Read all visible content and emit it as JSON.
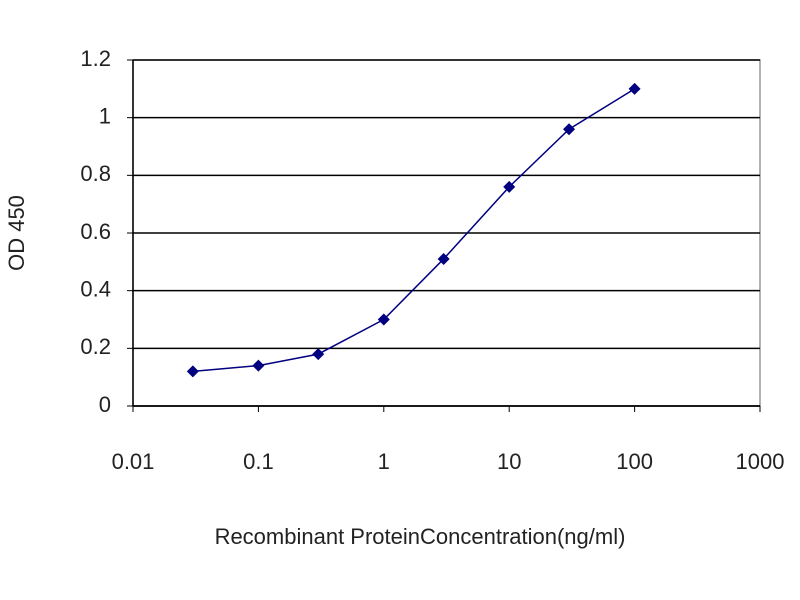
{
  "chart_data": {
    "type": "line",
    "x": [
      0.03,
      0.1,
      0.3,
      1,
      3,
      10,
      30,
      100
    ],
    "series": [
      {
        "name": "OD",
        "color": "#000080",
        "values": [
          0.12,
          0.14,
          0.18,
          0.3,
          0.51,
          0.76,
          0.96,
          1.1
        ]
      }
    ],
    "xscale": "log",
    "xlim": [
      0.01,
      1000
    ],
    "xticks": [
      0.01,
      0.1,
      1,
      10,
      100,
      1000
    ],
    "ylim": [
      0,
      1.2
    ],
    "yticks": [
      0,
      0.2,
      0.4,
      0.6,
      0.8,
      1,
      1.2
    ],
    "xlabel": "Recombinant ProteinConcentration(ng/ml)",
    "ylabel": "OD 450",
    "grid": true
  }
}
